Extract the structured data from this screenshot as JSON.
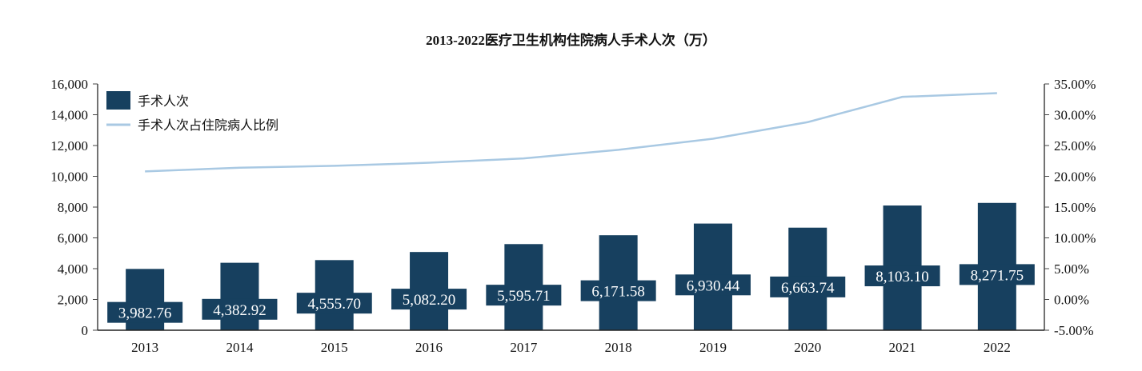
{
  "chart_data": {
    "type": "bar",
    "title": "2013-2022医疗卫生机构住院病人手术人次（万）",
    "categories": [
      "2013",
      "2014",
      "2015",
      "2016",
      "2017",
      "2018",
      "2019",
      "2020",
      "2021",
      "2022"
    ],
    "series": [
      {
        "name": "手术人次",
        "type": "bar",
        "axis": "left",
        "color": "#17405f",
        "values": [
          3982.76,
          4382.92,
          4555.7,
          5082.2,
          5595.71,
          6171.58,
          6930.44,
          6663.74,
          8103.1,
          8271.75
        ],
        "labels": [
          "3,982.76",
          "4,382.92",
          "4,555.70",
          "5,082.20",
          "5,595.71",
          "6,171.58",
          "6,930.44",
          "6,663.74",
          "8,103.10",
          "8,271.75"
        ]
      },
      {
        "name": "手术人次占住院病人比例",
        "type": "line",
        "axis": "right",
        "color": "#a9c9e3",
        "values": [
          0.208,
          0.214,
          0.217,
          0.222,
          0.229,
          0.243,
          0.261,
          0.288,
          0.329,
          0.335
        ]
      }
    ],
    "left_axis": {
      "ylim": [
        0,
        16000
      ],
      "ticks": [
        "0",
        "2,000",
        "4,000",
        "6,000",
        "8,000",
        "10,000",
        "12,000",
        "14,000",
        "16,000"
      ]
    },
    "right_axis": {
      "ylim": [
        -0.05,
        0.35
      ],
      "ticks": [
        "-5.00%",
        "0.00%",
        "5.00%",
        "10.00%",
        "15.00%",
        "20.00%",
        "25.00%",
        "30.00%",
        "35.00%"
      ]
    },
    "xlabel": "",
    "ylabel": "",
    "grid": false,
    "legend_position": "top-left-inside"
  },
  "legend": {
    "bar_label": "手术人次",
    "line_label": "手术人次占住院病人比例"
  }
}
